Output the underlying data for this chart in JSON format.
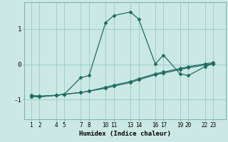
{
  "title": "",
  "xlabel": "Humidex (Indice chaleur)",
  "ylabel": "",
  "bg_color": "#cce8e4",
  "grid_color": "#9dcfca",
  "line_color": "#1e6b63",
  "xlim": [
    0.2,
    24.5
  ],
  "ylim": [
    -1.55,
    1.75
  ],
  "yticks": [
    -1,
    0,
    1
  ],
  "xtick_pairs": [
    1,
    2,
    4,
    5,
    7,
    8,
    10,
    11,
    13,
    14,
    16,
    17,
    19,
    20,
    22,
    23
  ],
  "line1_x": [
    1,
    2,
    4,
    5,
    7,
    8,
    10,
    11,
    13,
    14,
    16,
    17,
    19,
    20,
    22,
    23
  ],
  "line1_y": [
    -0.88,
    -0.9,
    -0.88,
    -0.85,
    -0.38,
    -0.32,
    1.18,
    1.38,
    1.48,
    1.28,
    0.01,
    0.26,
    -0.27,
    -0.32,
    -0.07,
    0.02
  ],
  "line2_x": [
    1,
    2,
    4,
    5,
    7,
    8,
    10,
    11,
    13,
    14,
    16,
    17,
    19,
    20,
    22,
    23
  ],
  "line2_y": [
    -0.92,
    -0.92,
    -0.88,
    -0.85,
    -0.8,
    -0.76,
    -0.68,
    -0.62,
    -0.52,
    -0.44,
    -0.3,
    -0.25,
    -0.15,
    -0.1,
    -0.02,
    0.02
  ],
  "line3_x": [
    1,
    2,
    4,
    5,
    7,
    8,
    10,
    11,
    13,
    14,
    16,
    17,
    19,
    20,
    22,
    23
  ],
  "line3_y": [
    -0.92,
    -0.92,
    -0.88,
    -0.85,
    -0.8,
    -0.76,
    -0.65,
    -0.59,
    -0.49,
    -0.41,
    -0.27,
    -0.22,
    -0.12,
    -0.07,
    0.01,
    0.05
  ]
}
